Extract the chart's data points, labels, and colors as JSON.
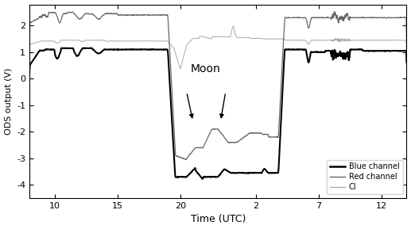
{
  "xlabel": "Time (UTC)",
  "ylabel": "ODS output (V)",
  "ylim": [
    -4.5,
    2.8
  ],
  "yticks": [
    -4,
    -3,
    -2,
    -1,
    0,
    1,
    2
  ],
  "xticklabels": [
    "10",
    "15",
    "20",
    "2",
    "7",
    "12"
  ],
  "blue_color": "#000000",
  "red_color": "#666666",
  "ci_color": "#aaaaaa",
  "legend_labels": [
    "Blue channel",
    "Red channel",
    "CI"
  ]
}
